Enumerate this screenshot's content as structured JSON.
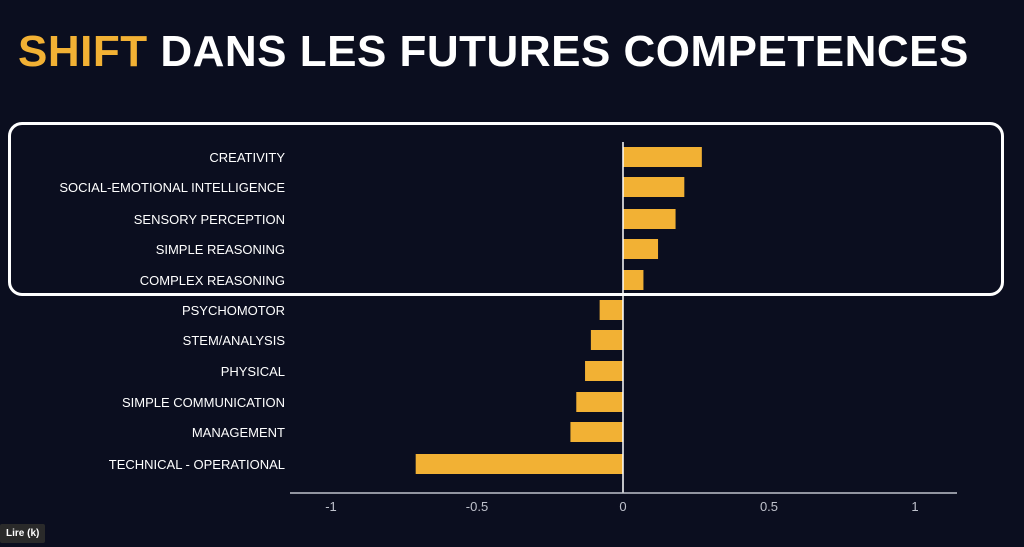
{
  "slide": {
    "title_highlight": "SHIFT",
    "title_rest": " DANS LES FUTURES COMPETENCES"
  },
  "player": {
    "play_label": "Lire (k)"
  },
  "colors": {
    "background": "#0b0e1f",
    "bar": "#f2b134",
    "text": "#ffffff",
    "highlight_title": "#f2b134"
  },
  "chart_data": {
    "type": "bar",
    "orientation": "horizontal",
    "categories": [
      "CREATIVITY",
      "SOCIAL-EMOTIONAL INTELLIGENCE",
      "SENSORY PERCEPTION",
      "SIMPLE REASONING",
      "COMPLEX REASONING",
      "PSYCHOMOTOR",
      "STEM/ANALYSIS",
      "PHYSICAL",
      "SIMPLE COMMUNICATION",
      "MANAGEMENT",
      "TECHNICAL - OPERATIONAL"
    ],
    "values": [
      0.27,
      0.21,
      0.18,
      0.12,
      0.07,
      -0.08,
      -0.11,
      -0.13,
      -0.16,
      -0.18,
      -0.71
    ],
    "highlighted_categories": [
      "CREATIVITY",
      "SOCIAL-EMOTIONAL INTELLIGENCE",
      "SENSORY PERCEPTION",
      "SIMPLE REASONING",
      "COMPLEX REASONING"
    ],
    "xlim": [
      -1.15,
      1.15
    ],
    "xticks": [
      -1,
      -0.5,
      0,
      0.5,
      1
    ],
    "xtick_labels": [
      "-1",
      "-0.5",
      "0",
      "0.5",
      "1"
    ],
    "grid": false,
    "legend": "none"
  }
}
